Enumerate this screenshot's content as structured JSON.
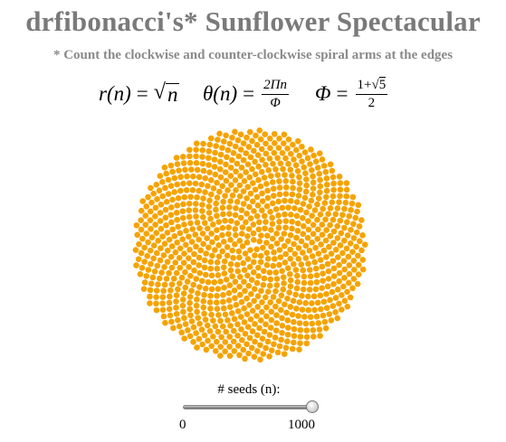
{
  "header": {
    "title": "drfibonacci's* Sunflower Spectacular",
    "subtitle": "* Count the clockwise and counter-clockwise spiral arms at the edges"
  },
  "formulas": {
    "r_lhs": "r(n)",
    "r_eq": "=",
    "r_rad": "√",
    "r_under": "n",
    "theta_lhs": "θ(n)",
    "theta_eq": "=",
    "theta_num": "2Πn",
    "theta_den": "Φ",
    "phi_lhs": "Φ",
    "phi_eq": "=",
    "phi_num_prefix": "1+",
    "phi_num_root": "√",
    "phi_num_under": "5",
    "phi_den": "2"
  },
  "sunflower": {
    "seed_count": 1000,
    "seed_color": "#f5a300",
    "golden_ratio": 1.6180339887
  },
  "slider": {
    "label": "# seeds (n):",
    "min_label": "0",
    "max_label": "1000",
    "value": 1000,
    "min": 0,
    "max": 1000
  }
}
